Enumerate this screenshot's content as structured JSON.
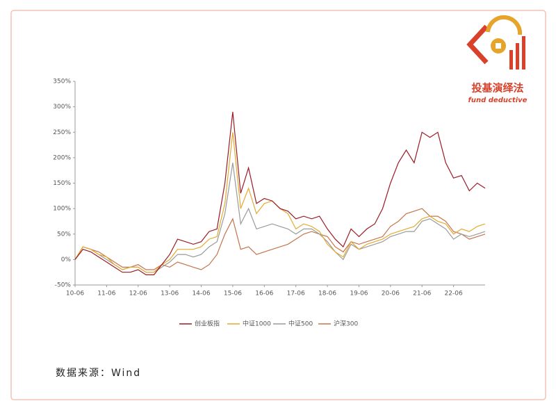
{
  "logo": {
    "title": "投基演绎法",
    "subtitle": "fund deductive"
  },
  "source": "数据来源：Wind",
  "chart_data": {
    "type": "line",
    "categories": [
      "10-06",
      null,
      null,
      null,
      "11-06",
      null,
      null,
      null,
      "12-06",
      null,
      null,
      null,
      "13-06",
      null,
      null,
      null,
      "14-06",
      null,
      null,
      null,
      "15-06",
      null,
      null,
      null,
      "16-06",
      null,
      null,
      null,
      "17-06",
      null,
      null,
      null,
      "18-06",
      null,
      null,
      null,
      "19-06",
      null,
      null,
      null,
      "20-06",
      null,
      null,
      null,
      "21-06",
      null,
      null,
      null,
      "22-06",
      null,
      null,
      null,
      null
    ],
    "ylim": [
      -50,
      350
    ],
    "yticks": [
      {
        "value": -50,
        "label": "-50%"
      },
      {
        "value": 0,
        "label": "0%"
      },
      {
        "value": 50,
        "label": "50%"
      },
      {
        "value": 100,
        "label": "100%"
      },
      {
        "value": 150,
        "label": "150%"
      },
      {
        "value": 200,
        "label": "200%"
      },
      {
        "value": 250,
        "label": "250%"
      },
      {
        "value": 300,
        "label": "300%"
      },
      {
        "value": 350,
        "label": "350%"
      }
    ],
    "series": [
      {
        "name": "创业板指",
        "color": "#9b1b24",
        "values": [
          0,
          20,
          15,
          5,
          -5,
          -15,
          -25,
          -25,
          -20,
          -30,
          -30,
          -10,
          10,
          40,
          35,
          30,
          35,
          55,
          60,
          150,
          290,
          130,
          180,
          110,
          120,
          115,
          100,
          95,
          80,
          85,
          80,
          85,
          60,
          40,
          25,
          60,
          45,
          60,
          70,
          100,
          150,
          190,
          215,
          190,
          250,
          240,
          250,
          190,
          160,
          165,
          135,
          150,
          140
        ]
      },
      {
        "name": "中证1000",
        "color": "#e3aa2e",
        "values": [
          0,
          25,
          20,
          10,
          5,
          -10,
          -20,
          -15,
          -15,
          -25,
          -25,
          -10,
          0,
          20,
          20,
          20,
          25,
          40,
          45,
          110,
          250,
          100,
          140,
          90,
          110,
          115,
          100,
          90,
          60,
          70,
          65,
          55,
          30,
          15,
          5,
          35,
          20,
          30,
          35,
          40,
          50,
          55,
          60,
          65,
          80,
          85,
          75,
          70,
          50,
          60,
          55,
          65,
          70
        ]
      },
      {
        "name": "中证500",
        "color": "#9a9a9a",
        "values": [
          0,
          25,
          20,
          10,
          0,
          -10,
          -20,
          -15,
          -15,
          -25,
          -25,
          -15,
          -5,
          10,
          10,
          5,
          10,
          25,
          35,
          90,
          190,
          70,
          100,
          60,
          65,
          70,
          65,
          60,
          50,
          60,
          60,
          50,
          35,
          15,
          0,
          30,
          20,
          25,
          30,
          35,
          45,
          50,
          55,
          55,
          75,
          80,
          70,
          60,
          40,
          50,
          45,
          50,
          55
        ]
      },
      {
        "name": "沪深300",
        "color": "#c4744c",
        "values": [
          0,
          25,
          20,
          15,
          5,
          -5,
          -15,
          -15,
          -10,
          -20,
          -20,
          -10,
          -15,
          -5,
          -10,
          -15,
          -20,
          -10,
          10,
          50,
          80,
          20,
          25,
          10,
          15,
          20,
          25,
          30,
          40,
          50,
          55,
          50,
          45,
          25,
          15,
          35,
          30,
          35,
          40,
          45,
          65,
          75,
          90,
          95,
          100,
          85,
          85,
          75,
          55,
          50,
          40,
          45,
          50
        ]
      }
    ]
  }
}
